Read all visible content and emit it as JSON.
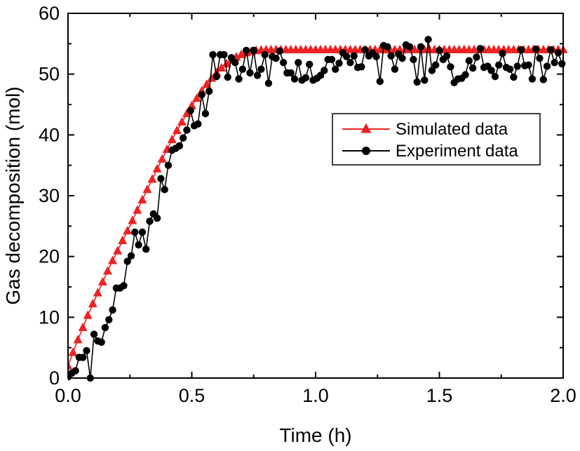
{
  "chart_data": {
    "type": "line",
    "title": "",
    "xlabel": "Time (h)",
    "ylabel": "Gas decomposition (mol)",
    "xlim": [
      0,
      2.0
    ],
    "ylim": [
      0,
      60
    ],
    "x_ticks": [
      "0.0",
      "0.5",
      "1.0",
      "1.5",
      "2.0"
    ],
    "y_ticks": [
      "0",
      "10",
      "20",
      "30",
      "40",
      "50",
      "60"
    ],
    "grid": false,
    "legend_position": "top-right",
    "series": [
      {
        "name": "Simulated data",
        "color": "#ee2222",
        "marker": "triangle",
        "x": [
          0.0,
          0.02,
          0.04,
          0.06,
          0.08,
          0.1,
          0.12,
          0.14,
          0.16,
          0.18,
          0.2,
          0.22,
          0.24,
          0.26,
          0.28,
          0.3,
          0.32,
          0.34,
          0.36,
          0.38,
          0.4,
          0.42,
          0.44,
          0.46,
          0.48,
          0.5,
          0.52,
          0.54,
          0.56,
          0.58,
          0.6,
          0.62,
          0.64,
          0.66,
          0.68,
          0.7,
          0.72,
          0.74,
          0.76,
          0.78,
          0.8,
          0.82,
          0.84,
          0.86,
          0.88,
          0.9,
          0.92,
          0.94,
          0.96,
          0.98,
          1.0,
          1.02,
          1.04,
          1.06,
          1.08,
          1.1,
          1.12,
          1.14,
          1.16,
          1.18,
          1.2,
          1.22,
          1.24,
          1.26,
          1.28,
          1.3,
          1.32,
          1.34,
          1.36,
          1.38,
          1.4,
          1.42,
          1.44,
          1.46,
          1.48,
          1.5,
          1.52,
          1.54,
          1.56,
          1.58,
          1.6,
          1.62,
          1.64,
          1.66,
          1.68,
          1.7,
          1.72,
          1.74,
          1.76,
          1.78,
          1.8,
          1.82,
          1.84,
          1.86,
          1.88,
          1.9,
          1.92,
          1.94,
          1.96,
          1.98,
          2.0
        ],
        "values": [
          2.0,
          4.2,
          6.3,
          8.3,
          10.3,
          12.2,
          14.0,
          15.8,
          17.6,
          19.3,
          20.9,
          22.6,
          24.2,
          25.9,
          27.6,
          29.3,
          31.0,
          32.7,
          34.4,
          36.0,
          37.6,
          39.2,
          40.7,
          42.1,
          43.5,
          44.8,
          46.0,
          47.2,
          48.3,
          49.3,
          50.2,
          51.0,
          51.7,
          52.3,
          52.8,
          53.2,
          53.5,
          53.7,
          53.85,
          53.95,
          54.0,
          54.0,
          54.0,
          54.0,
          54.0,
          54.0,
          54.0,
          54.0,
          54.0,
          54.0,
          54.0,
          54.0,
          54.0,
          54.0,
          54.0,
          54.0,
          54.0,
          54.0,
          54.0,
          54.0,
          54.0,
          54.0,
          54.0,
          54.0,
          54.0,
          54.0,
          54.0,
          54.0,
          54.0,
          54.0,
          54.0,
          54.0,
          54.0,
          54.0,
          54.0,
          54.0,
          54.0,
          54.0,
          54.0,
          54.0,
          54.0,
          54.0,
          54.0,
          54.0,
          54.0,
          54.0,
          54.0,
          54.0,
          54.0,
          54.0,
          54.0,
          54.0,
          54.0,
          54.0,
          54.0,
          54.0,
          54.0,
          54.0,
          54.0,
          54.0,
          54.0
        ]
      },
      {
        "name": "Experiment data",
        "color": "#000000",
        "marker": "circle",
        "x": [
          0.0,
          0.015,
          0.03,
          0.045,
          0.06,
          0.075,
          0.09,
          0.105,
          0.12,
          0.135,
          0.15,
          0.165,
          0.18,
          0.195,
          0.21,
          0.225,
          0.24,
          0.255,
          0.27,
          0.285,
          0.3,
          0.315,
          0.33,
          0.345,
          0.36,
          0.375,
          0.39,
          0.405,
          0.42,
          0.435,
          0.45,
          0.465,
          0.48,
          0.495,
          0.51,
          0.525,
          0.54,
          0.555,
          0.57,
          0.585,
          0.6,
          0.615,
          0.63,
          0.645,
          0.66,
          0.675,
          0.69,
          0.705,
          0.72,
          0.735,
          0.75,
          0.765,
          0.78,
          0.795,
          0.81,
          0.825,
          0.84,
          0.855,
          0.87,
          0.885,
          0.9,
          0.915,
          0.93,
          0.945,
          0.96,
          0.975,
          0.99,
          1.005,
          1.02,
          1.035,
          1.05,
          1.065,
          1.08,
          1.095,
          1.11,
          1.125,
          1.14,
          1.155,
          1.17,
          1.185,
          1.2,
          1.215,
          1.23,
          1.245,
          1.26,
          1.275,
          1.29,
          1.305,
          1.32,
          1.335,
          1.35,
          1.365,
          1.38,
          1.395,
          1.41,
          1.425,
          1.44,
          1.455,
          1.47,
          1.485,
          1.5,
          1.515,
          1.53,
          1.545,
          1.56,
          1.575,
          1.59,
          1.605,
          1.62,
          1.635,
          1.65,
          1.665,
          1.68,
          1.695,
          1.71,
          1.725,
          1.74,
          1.755,
          1.77,
          1.785,
          1.8,
          1.815,
          1.83,
          1.845,
          1.86,
          1.875,
          1.89,
          1.905,
          1.92,
          1.935,
          1.95,
          1.965,
          1.98,
          1.995
        ],
        "values": [
          0.2,
          0.8,
          1.2,
          3.4,
          3.4,
          4.5,
          0.0,
          7.2,
          6.1,
          5.9,
          8.3,
          9.6,
          11.2,
          14.8,
          14.8,
          15.2,
          19.2,
          20.1,
          24.0,
          21.9,
          24.0,
          21.2,
          25.8,
          27.0,
          26.3,
          32.8,
          31.0,
          35.0,
          37.5,
          37.8,
          38.2,
          39.5,
          40.8,
          44.0,
          41.5,
          41.8,
          46.6,
          43.5,
          47.2,
          53.2,
          49.6,
          53.2,
          53.2,
          49.5,
          52.7,
          51.9,
          49.2,
          50.8,
          53.9,
          50.2,
          53.9,
          49.8,
          50.8,
          53.2,
          48.5,
          52.9,
          52.6,
          53.8,
          51.9,
          50.2,
          50.2,
          49.2,
          51.9,
          49.0,
          49.4,
          51.6,
          49.0,
          49.3,
          49.8,
          50.6,
          52.4,
          52.4,
          50.8,
          51.8,
          53.5,
          52.9,
          51.9,
          53.0,
          51.1,
          51.2,
          54.0,
          53.0,
          53.5,
          52.9,
          48.8,
          54.7,
          54.5,
          53.0,
          50.8,
          53.3,
          52.6,
          54.8,
          54.5,
          52.4,
          48.7,
          54.5,
          49.0,
          55.7,
          50.6,
          51.5,
          53.9,
          52.4,
          53.0,
          51.2,
          48.6,
          49.2,
          49.3,
          49.9,
          52.2,
          51.0,
          52.8,
          54.2,
          51.1,
          51.3,
          50.6,
          49.6,
          51.5,
          53.4,
          51.1,
          50.8,
          49.5,
          51.3,
          54.0,
          51.4,
          51.5,
          49.2,
          54.1,
          52.6,
          49.1,
          51.3,
          54.0,
          51.9,
          53.5,
          51.7
        ]
      }
    ]
  }
}
